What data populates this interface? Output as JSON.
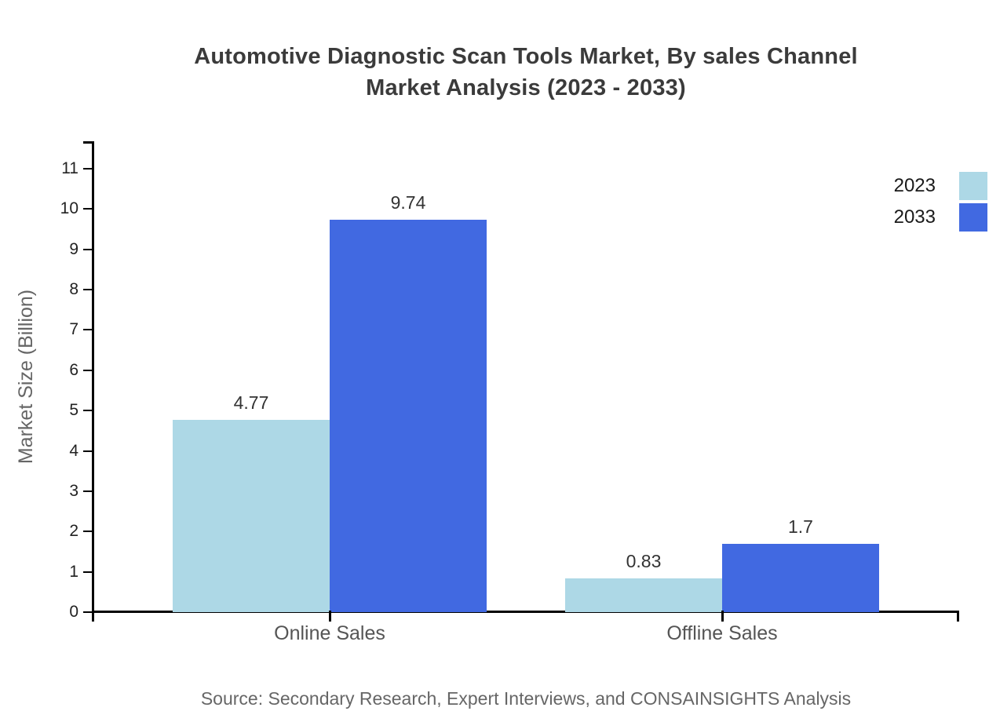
{
  "title": {
    "line1": "Automotive Diagnostic Scan Tools Market, By sales Channel",
    "line2": "Market Analysis (2023 - 2033)"
  },
  "source_note": "Source: Secondary Research, Expert Interviews, and CONSAINSIGHTS Analysis",
  "chart_data": {
    "type": "bar",
    "title": "Automotive Diagnostic Scan Tools Market, By sales Channel Market Analysis (2023 - 2033)",
    "categories": [
      "Online Sales",
      "Offline Sales"
    ],
    "series": [
      {
        "name": "2023",
        "color": "#ADD8E6",
        "values": [
          4.77,
          0.83
        ],
        "labels": [
          "4.77",
          "0.83"
        ]
      },
      {
        "name": "2033",
        "color": "#4169E1",
        "values": [
          9.74,
          1.7
        ],
        "labels": [
          "9.74",
          "1.7"
        ]
      }
    ],
    "xlabel": "",
    "ylabel": "Market Size (Billion)",
    "ylim": [
      0,
      11.7
    ],
    "yticks": [
      0,
      1,
      2,
      3,
      4,
      5,
      6,
      7,
      8,
      9,
      10,
      11
    ],
    "grid": false,
    "legend_position": "top-right",
    "value_labels": "above bars"
  }
}
